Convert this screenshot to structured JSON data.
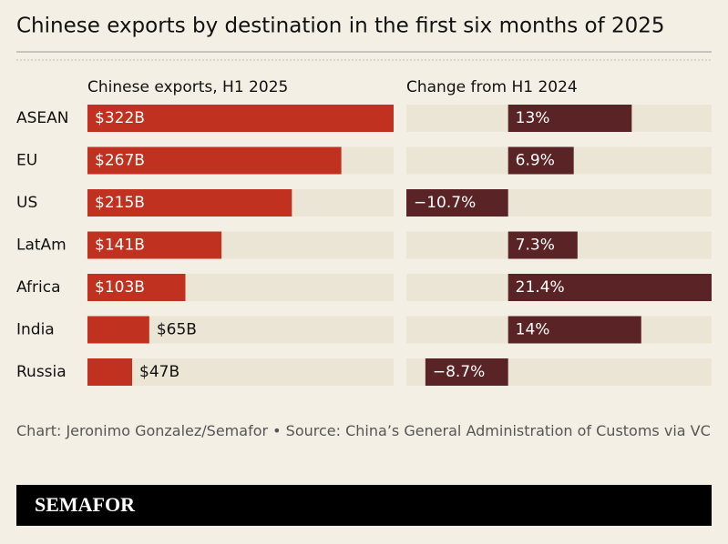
{
  "chart_data": {
    "type": "bar",
    "title": "Chinese exports by destination in the first six months of 2025",
    "categories": [
      "ASEAN",
      "EU",
      "US",
      "LatAm",
      "Africa",
      "India",
      "Russia"
    ],
    "series": [
      {
        "name": "Chinese exports, H1 2025",
        "color": "#c0311f",
        "values": [
          322,
          267,
          215,
          141,
          103,
          65,
          47
        ],
        "value_labels": [
          "$322B",
          "$267B",
          "$215B",
          "$141B",
          "$103B",
          "$65B",
          "$47B"
        ]
      },
      {
        "name": "Change from H1 2024",
        "color": "#5a2426",
        "values": [
          13,
          6.9,
          -10.7,
          7.3,
          21.4,
          14,
          -8.7
        ],
        "value_labels": [
          "13%",
          "6.9%",
          "−10.7%",
          "7.3%",
          "21.4%",
          "14%",
          "−8.7%"
        ]
      }
    ],
    "source": "Chart: Jeronimo Gonzalez/Semafor • Source: China’s General Administration of Customs via VC"
  },
  "brand": "SEMAFOR"
}
